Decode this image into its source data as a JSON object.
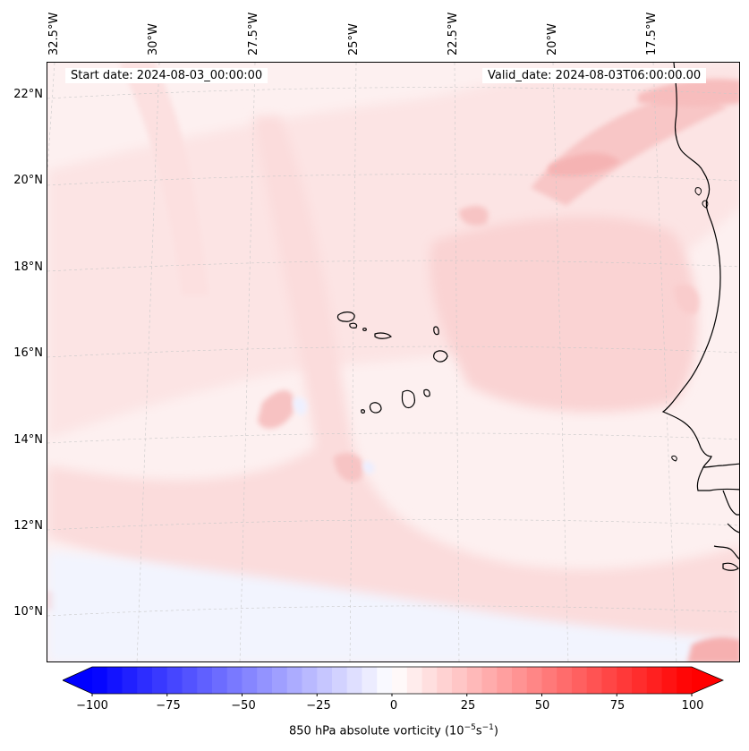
{
  "map": {
    "start_date": "Start date: 2024-08-03_00:00:00",
    "valid_date": "Valid_date: 2024-08-03T06:00:00.00",
    "lon_labels": [
      "32.5°W",
      "30°W",
      "27.5°W",
      "25°W",
      "22.5°W",
      "20°W",
      "17.5°W"
    ],
    "lat_labels": [
      "22°N",
      "20°N",
      "18°N",
      "16°N",
      "14°N",
      "12°N",
      "10°N"
    ],
    "field": "850 hPa absolute vorticity",
    "colormap": "bwr"
  },
  "colorbar": {
    "ticks": [
      "−100",
      "−75",
      "−50",
      "−25",
      "0",
      "25",
      "50",
      "75",
      "100"
    ],
    "min": -100,
    "max": 100,
    "levels": 41,
    "label_prefix": "850 hPa absolute vorticity (10",
    "label_exp1": "−5",
    "label_mid": "s",
    "label_exp2": "−1",
    "label_suffix": ")",
    "colors": {
      "low": "#0000ff",
      "mid": "#ffffff",
      "high": "#ff0000"
    }
  }
}
